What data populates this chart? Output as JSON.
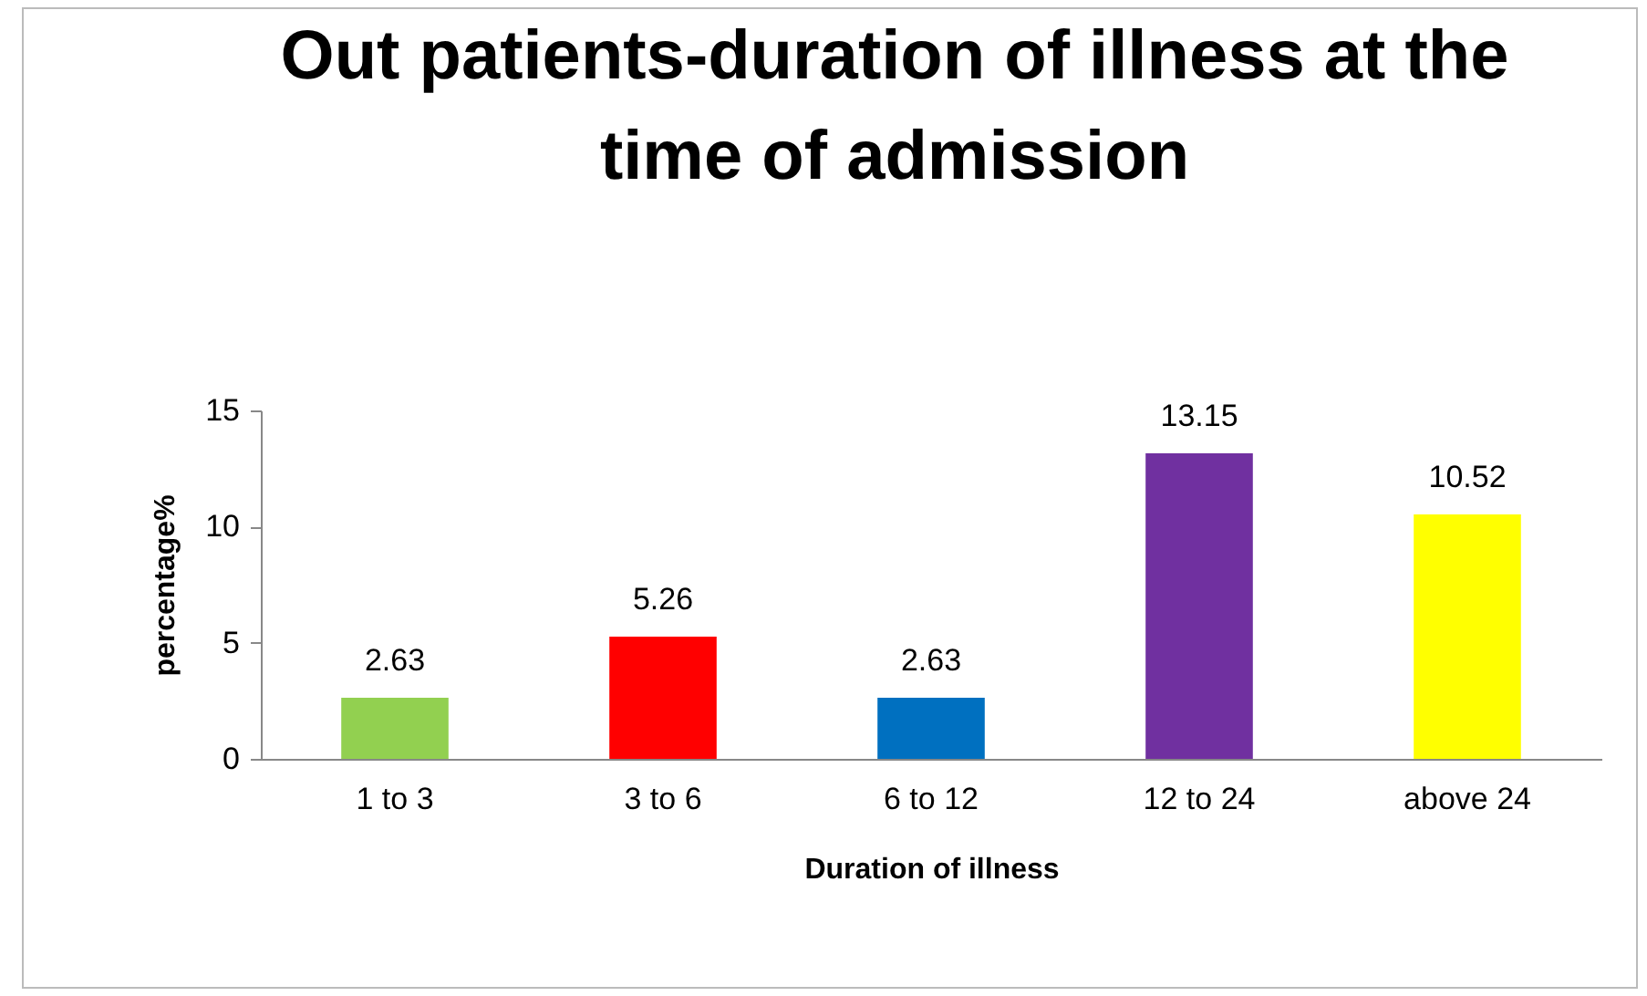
{
  "chart_data": {
    "type": "bar",
    "title": "Out patients-duration of illness at the time of admission",
    "xlabel": "Duration of illness",
    "ylabel": "percentage%",
    "categories": [
      "1 to 3",
      "3 to 6",
      "6 to 12",
      "12 to 24",
      "above 24"
    ],
    "values": [
      2.63,
      5.26,
      2.63,
      13.15,
      10.52
    ],
    "colors": [
      "#92d050",
      "#ff0000",
      "#0070c0",
      "#7030a0",
      "#ffff00"
    ],
    "ylim": [
      0,
      15
    ],
    "yticks": [
      0,
      5,
      10,
      15
    ],
    "grid": false,
    "legend": false,
    "data_labels": true
  }
}
